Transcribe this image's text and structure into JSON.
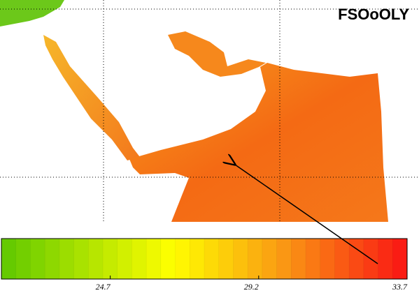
{
  "title": "FSOoOLY",
  "colorbar": {
    "lim": [
      21.4,
      33.7
    ],
    "ticks": [
      24.7,
      29.2,
      33.7
    ]
  }
}
